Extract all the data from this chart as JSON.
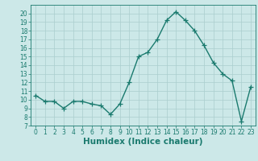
{
  "x": [
    0,
    1,
    2,
    3,
    4,
    5,
    6,
    7,
    8,
    9,
    10,
    11,
    12,
    13,
    14,
    15,
    16,
    17,
    18,
    19,
    20,
    21,
    22,
    23
  ],
  "y": [
    10.5,
    9.8,
    9.8,
    9.0,
    9.8,
    9.8,
    9.5,
    9.3,
    8.3,
    9.5,
    12.0,
    15.0,
    15.5,
    17.0,
    19.2,
    20.2,
    19.2,
    18.0,
    16.3,
    14.3,
    13.0,
    12.2,
    7.5,
    11.5
  ],
  "line_color": "#1a7a6e",
  "marker": "+",
  "marker_size": 4,
  "bg_color": "#cce8e8",
  "grid_color": "#aacece",
  "xlabel": "Humidex (Indice chaleur)",
  "ylim": [
    7,
    21
  ],
  "xlim": [
    -0.5,
    23.5
  ],
  "yticks": [
    7,
    8,
    9,
    10,
    11,
    12,
    13,
    14,
    15,
    16,
    17,
    18,
    19,
    20
  ],
  "xticks": [
    0,
    1,
    2,
    3,
    4,
    5,
    6,
    7,
    8,
    9,
    10,
    11,
    12,
    13,
    14,
    15,
    16,
    17,
    18,
    19,
    20,
    21,
    22,
    23
  ],
  "tick_label_fontsize": 5.5,
  "xlabel_fontsize": 7.5,
  "line_width": 1.0
}
